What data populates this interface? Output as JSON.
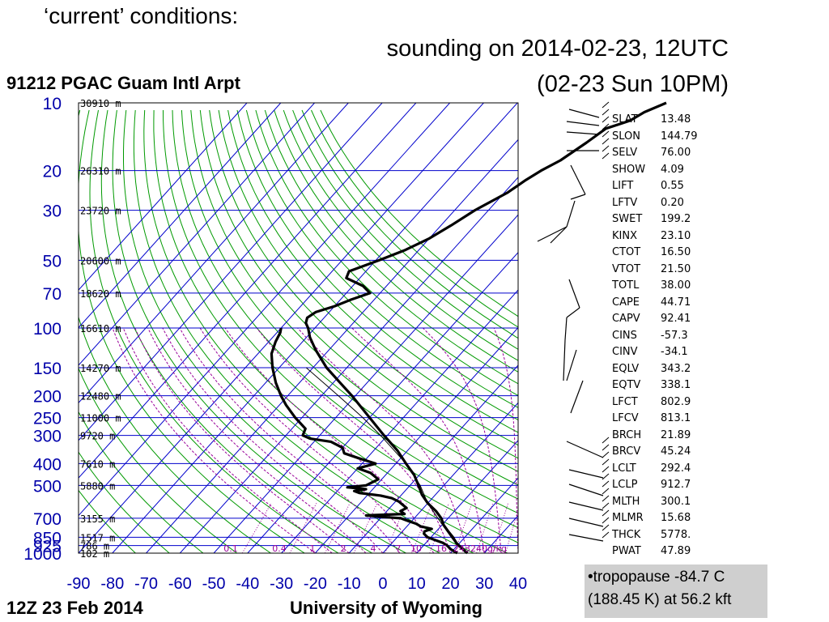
{
  "slide": {
    "title": "‘current’ conditions:",
    "subtitle_line1": "sounding on 2014-02-23, 12UTC",
    "subtitle_line2": "(02-23 Sun 10PM)",
    "note": "•tropopause -84.7 C (188.45 K) at 56.2 kft"
  },
  "chart_data": {
    "type": "line",
    "title": "91212 PGAC Guam Intl Arpt",
    "footer_left": "12Z 23 Feb 2014",
    "footer_right": "University of Wyoming",
    "xlim": [
      -90,
      40
    ],
    "ylim_hPa": [
      1000,
      10
    ],
    "y_log": true,
    "x_ticks": [
      "-90",
      "-80",
      "-70",
      "-60",
      "-50",
      "-40",
      "-30",
      "-20",
      "-10",
      "0",
      "10",
      "20",
      "30",
      "40"
    ],
    "pressure_levels": [
      {
        "p": 10,
        "label": "10",
        "height": "30910 m"
      },
      {
        "p": 20,
        "label": "20",
        "height": "26310 m"
      },
      {
        "p": 30,
        "label": "30",
        "height": "23720 m"
      },
      {
        "p": 50,
        "label": "50",
        "height": "20600 m"
      },
      {
        "p": 70,
        "label": "70",
        "height": "18620 m"
      },
      {
        "p": 100,
        "label": "100",
        "height": "16610 m"
      },
      {
        "p": 150,
        "label": "150",
        "height": "14270 m"
      },
      {
        "p": 200,
        "label": "200",
        "height": "12480 m"
      },
      {
        "p": 250,
        "label": "250",
        "height": "11000 m"
      },
      {
        "p": 300,
        "label": "300",
        "height": "9720 m"
      },
      {
        "p": 400,
        "label": "400",
        "height": "7610 m"
      },
      {
        "p": 500,
        "label": "500",
        "height": "5880 m"
      },
      {
        "p": 700,
        "label": "700",
        "height": "3155 m"
      },
      {
        "p": 850,
        "label": "850",
        "height": "1517 m"
      },
      {
        "p": 925,
        "label": "925",
        "height": "786 m"
      },
      {
        "p": 1000,
        "label": "1000",
        "height": "102 m"
      }
    ],
    "mixing_ratio_labels": [
      "0.1",
      "0.4",
      "1",
      "2",
      "4",
      "7",
      "10",
      "16",
      "24",
      "32",
      "40g/kg"
    ],
    "temperature": [
      [
        1000,
        25
      ],
      [
        950,
        22
      ],
      [
        925,
        20.5
      ],
      [
        900,
        19
      ],
      [
        850,
        16.5
      ],
      [
        800,
        13.5
      ],
      [
        750,
        10.5
      ],
      [
        700,
        8
      ],
      [
        650,
        4.5
      ],
      [
        600,
        0
      ],
      [
        550,
        -4
      ],
      [
        500,
        -7.5
      ],
      [
        450,
        -11.5
      ],
      [
        400,
        -17
      ],
      [
        350,
        -23
      ],
      [
        300,
        -31
      ],
      [
        250,
        -40
      ],
      [
        200,
        -51
      ],
      [
        175,
        -58
      ],
      [
        150,
        -66
      ],
      [
        125,
        -74
      ],
      [
        110,
        -79
      ],
      [
        100,
        -82
      ],
      [
        95,
        -84
      ],
      [
        90,
        -85
      ],
      [
        85,
        -84
      ],
      [
        80,
        -80
      ],
      [
        75,
        -77
      ],
      [
        70,
        -73
      ],
      [
        65,
        -77
      ],
      [
        60,
        -84
      ],
      [
        56,
        -85
      ],
      [
        50,
        -79
      ],
      [
        45,
        -74
      ],
      [
        40,
        -70
      ],
      [
        35,
        -67
      ],
      [
        30,
        -64
      ],
      [
        25,
        -59
      ],
      [
        22,
        -57
      ],
      [
        20,
        -55
      ],
      [
        18,
        -52
      ],
      [
        15,
        -49
      ],
      [
        13,
        -47
      ],
      [
        12,
        -42
      ],
      [
        11,
        -40
      ],
      [
        10,
        -36
      ]
    ],
    "dewpoint": [
      [
        1000,
        22
      ],
      [
        960,
        19
      ],
      [
        925,
        17
      ],
      [
        900,
        15
      ],
      [
        875,
        12
      ],
      [
        850,
        9
      ],
      [
        820,
        7
      ],
      [
        800,
        6.5
      ],
      [
        780,
        8
      ],
      [
        760,
        4
      ],
      [
        740,
        2
      ],
      [
        720,
        -1
      ],
      [
        700,
        -4
      ],
      [
        690,
        -10
      ],
      [
        680,
        -15
      ],
      [
        670,
        -4
      ],
      [
        650,
        -6
      ],
      [
        630,
        -5
      ],
      [
        610,
        -7
      ],
      [
        590,
        -9
      ],
      [
        570,
        -12
      ],
      [
        555,
        -16
      ],
      [
        540,
        -23
      ],
      [
        530,
        -25
      ],
      [
        520,
        -22
      ],
      [
        510,
        -28
      ],
      [
        500,
        -23
      ],
      [
        470,
        -21
      ],
      [
        440,
        -25
      ],
      [
        420,
        -30
      ],
      [
        400,
        -26
      ],
      [
        380,
        -32
      ],
      [
        360,
        -38
      ],
      [
        340,
        -40
      ],
      [
        320,
        -45
      ],
      [
        310,
        -52
      ],
      [
        300,
        -55
      ],
      [
        280,
        -56
      ],
      [
        250,
        -62
      ],
      [
        220,
        -68
      ],
      [
        200,
        -72
      ],
      [
        175,
        -77
      ],
      [
        150,
        -82
      ],
      [
        130,
        -86
      ],
      [
        115,
        -88
      ],
      [
        105,
        -89
      ],
      [
        100,
        -90
      ]
    ],
    "parcel": [
      [
        1000,
        25
      ],
      [
        925,
        20
      ],
      [
        850,
        16
      ],
      [
        700,
        7
      ],
      [
        600,
        0
      ],
      [
        500,
        -7
      ],
      [
        400,
        -17
      ],
      [
        300,
        -32
      ],
      [
        250,
        -42
      ],
      [
        200,
        -55
      ],
      [
        150,
        -72
      ]
    ]
  },
  "indices": [
    {
      "name": "SLAT",
      "value": "13.48"
    },
    {
      "name": "SLON",
      "value": "144.79"
    },
    {
      "name": "SELV",
      "value": "76.00"
    },
    {
      "name": "SHOW",
      "value": "4.09"
    },
    {
      "name": "LIFT",
      "value": "0.55"
    },
    {
      "name": "LFTV",
      "value": "0.20"
    },
    {
      "name": "SWET",
      "value": "199.2"
    },
    {
      "name": "KINX",
      "value": "23.10"
    },
    {
      "name": "CTOT",
      "value": "16.50"
    },
    {
      "name": "VTOT",
      "value": "21.50"
    },
    {
      "name": "TOTL",
      "value": "38.00"
    },
    {
      "name": "CAPE",
      "value": "44.71"
    },
    {
      "name": "CAPV",
      "value": "92.41"
    },
    {
      "name": "CINS",
      "value": "-57.3"
    },
    {
      "name": "CINV",
      "value": "-34.1"
    },
    {
      "name": "EQLV",
      "value": "343.2"
    },
    {
      "name": "EQTV",
      "value": "338.1"
    },
    {
      "name": "LFCT",
      "value": "802.9"
    },
    {
      "name": "LFCV",
      "value": "813.1"
    },
    {
      "name": "BRCH",
      "value": "21.89"
    },
    {
      "name": "BRCV",
      "value": "45.24"
    },
    {
      "name": "LCLT",
      "value": "292.4"
    },
    {
      "name": "LCLP",
      "value": "912.7"
    },
    {
      "name": "MLTH",
      "value": "300.1"
    },
    {
      "name": "MLMR",
      "value": "15.68"
    },
    {
      "name": "THCK",
      "value": "5778."
    },
    {
      "name": "PWAT",
      "value": "47.89"
    }
  ],
  "colors": {
    "isotherm": "#0000cc",
    "dry_adiabat": "#009900",
    "moist_adiabat": "#990099",
    "mixing": "#990099",
    "profile": "#000000",
    "note_bg": "#cfcfcf"
  }
}
